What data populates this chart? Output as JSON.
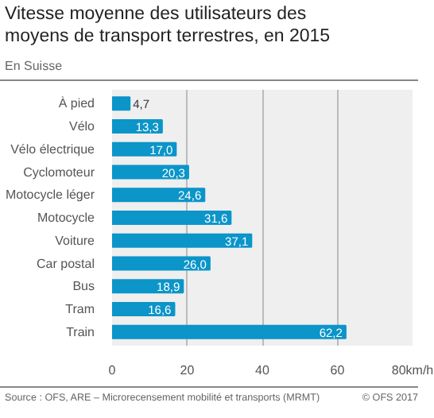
{
  "chart_data": {
    "type": "bar",
    "orientation": "horizontal",
    "title": "Vitesse moyenne des utilisateurs des moyens de transport terrestres, en 2015",
    "subtitle": "En Suisse",
    "categories": [
      "À pied",
      "Vélo",
      "Vélo électrique",
      "Cyclomoteur",
      "Motocycle léger",
      "Motocycle",
      "Voiture",
      "Car postal",
      "Bus",
      "Tram",
      "Train"
    ],
    "values": [
      4.7,
      13.3,
      17.0,
      20.3,
      24.6,
      31.6,
      37.1,
      26.0,
      18.9,
      16.6,
      62.2
    ],
    "value_labels": [
      "4,7",
      "13,3",
      "17,0",
      "20,3",
      "24,6",
      "31,6",
      "37,1",
      "26,0",
      "18,9",
      "16,6",
      "62,2"
    ],
    "color": "#0b95c9",
    "xlim": [
      0,
      80
    ],
    "xticks": [
      0,
      20,
      40,
      60,
      {
        "value": 80,
        "label": "80km/h"
      }
    ],
    "grid": "x",
    "annotations": [
      "Source : OFS, ARE – Microrecensement mobilité et transports (MRMT)",
      "© OFS 2017"
    ]
  }
}
